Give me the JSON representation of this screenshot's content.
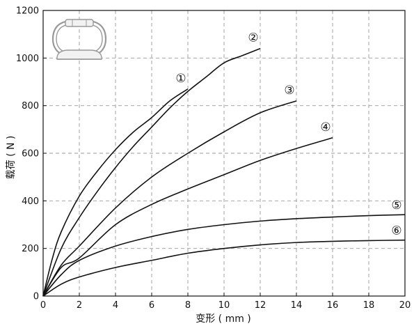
{
  "chart_data": {
    "type": "line",
    "xlabel": "变形 ( mm )",
    "ylabel": "载荷 ( N )",
    "xlim": [
      0,
      20
    ],
    "ylim": [
      0,
      1200
    ],
    "xticks": [
      "0",
      "2",
      "4",
      "6",
      "8",
      "10",
      "12",
      "14",
      "16",
      "18",
      "20"
    ],
    "yticks": [
      "0",
      "200",
      "400",
      "600",
      "800",
      "1000",
      "1200"
    ],
    "grid": true,
    "legend": "none",
    "series": [
      {
        "name": "①",
        "x": [
          0,
          0.5,
          1,
          2,
          3,
          4,
          5,
          6,
          7,
          8
        ],
        "y": [
          0,
          155,
          270,
          420,
          525,
          615,
          690,
          750,
          820,
          870
        ]
      },
      {
        "name": "②",
        "x": [
          0,
          1,
          2,
          3,
          4,
          5,
          6,
          7,
          8,
          9,
          10,
          11,
          12
        ],
        "y": [
          0,
          200,
          330,
          440,
          540,
          630,
          710,
          790,
          860,
          920,
          980,
          1010,
          1040
        ]
      },
      {
        "name": "③",
        "x": [
          0,
          1,
          2,
          4,
          6,
          8,
          10,
          12,
          14
        ],
        "y": [
          0,
          130,
          210,
          370,
          500,
          600,
          690,
          770,
          820
        ]
      },
      {
        "name": "④",
        "x": [
          0,
          1,
          2,
          4,
          6,
          8,
          10,
          12,
          14,
          16
        ],
        "y": [
          0,
          120,
          160,
          300,
          385,
          450,
          510,
          570,
          620,
          665
        ]
      },
      {
        "name": "⑤",
        "x": [
          0,
          1,
          2,
          4,
          6,
          8,
          10,
          12,
          14,
          16,
          18,
          20
        ],
        "y": [
          0,
          90,
          150,
          210,
          250,
          280,
          300,
          315,
          325,
          332,
          338,
          342
        ]
      },
      {
        "name": "⑥",
        "x": [
          0,
          1,
          2,
          4,
          6,
          8,
          10,
          12,
          14,
          16,
          18,
          20
        ],
        "y": [
          0,
          50,
          80,
          120,
          150,
          180,
          200,
          215,
          225,
          230,
          233,
          235
        ]
      }
    ]
  }
}
